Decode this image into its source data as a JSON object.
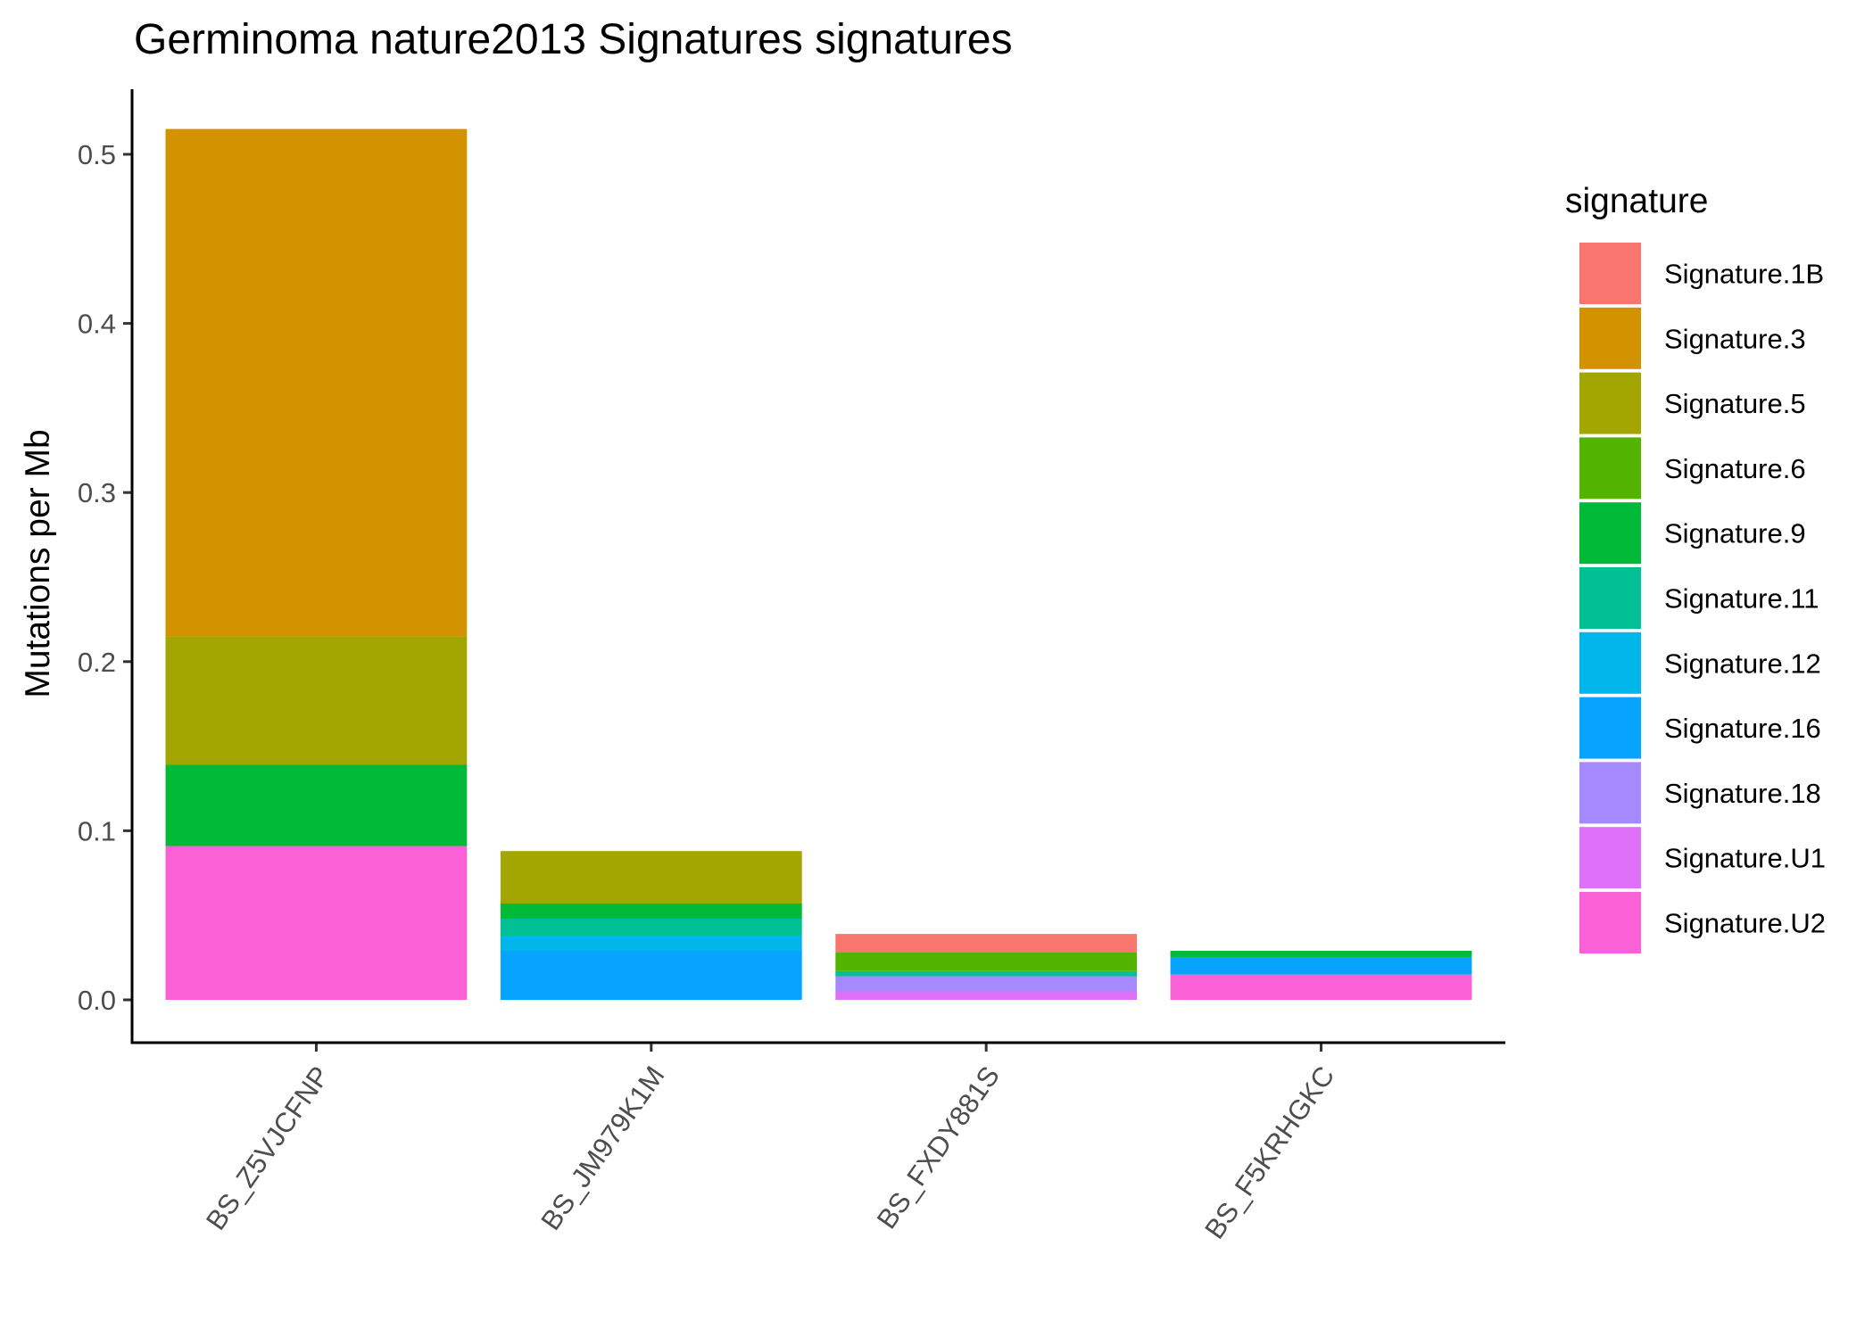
{
  "chart_data": {
    "type": "bar",
    "stacked": true,
    "title": "Germinoma nature2013 Signatures signatures",
    "xlabel": "",
    "ylabel": "Mutations per Mb",
    "ylim": [
      0,
      0.5
    ],
    "yticks": [
      "0.0",
      "0.1",
      "0.2",
      "0.3",
      "0.4",
      "0.5"
    ],
    "grid": false,
    "legend": {
      "title": "signature",
      "position": "right"
    },
    "categories": [
      "BS_Z5VJCFNP",
      "BS_JM979K1M",
      "BS_FXDY881S",
      "BS_F5KRHGKC"
    ],
    "series": [
      {
        "name": "Signature.1B",
        "color": "#F8766D",
        "values": [
          0,
          0,
          0.011,
          0
        ]
      },
      {
        "name": "Signature.3",
        "color": "#D39200",
        "values": [
          0.3,
          0,
          0,
          0
        ]
      },
      {
        "name": "Signature.5",
        "color": "#A3A500",
        "values": [
          0.076,
          0.031,
          0,
          0
        ]
      },
      {
        "name": "Signature.6",
        "color": "#53B400",
        "values": [
          0,
          0,
          0.011,
          0
        ]
      },
      {
        "name": "Signature.9",
        "color": "#00BA38",
        "values": [
          0.048,
          0.009,
          0,
          0.004
        ]
      },
      {
        "name": "Signature.11",
        "color": "#00C094",
        "values": [
          0,
          0.01,
          0.003,
          0
        ]
      },
      {
        "name": "Signature.12",
        "color": "#00B6EB",
        "values": [
          0,
          0.009,
          0,
          0
        ]
      },
      {
        "name": "Signature.16",
        "color": "#06A4FF",
        "values": [
          0,
          0.029,
          0,
          0.01
        ]
      },
      {
        "name": "Signature.18",
        "color": "#A58AFF",
        "values": [
          0,
          0,
          0.009,
          0
        ]
      },
      {
        "name": "Signature.U1",
        "color": "#DF70F8",
        "values": [
          0,
          0,
          0.005,
          0
        ]
      },
      {
        "name": "Signature.U2",
        "color": "#FB61D7",
        "values": [
          0.091,
          0,
          0,
          0.015
        ]
      }
    ]
  }
}
